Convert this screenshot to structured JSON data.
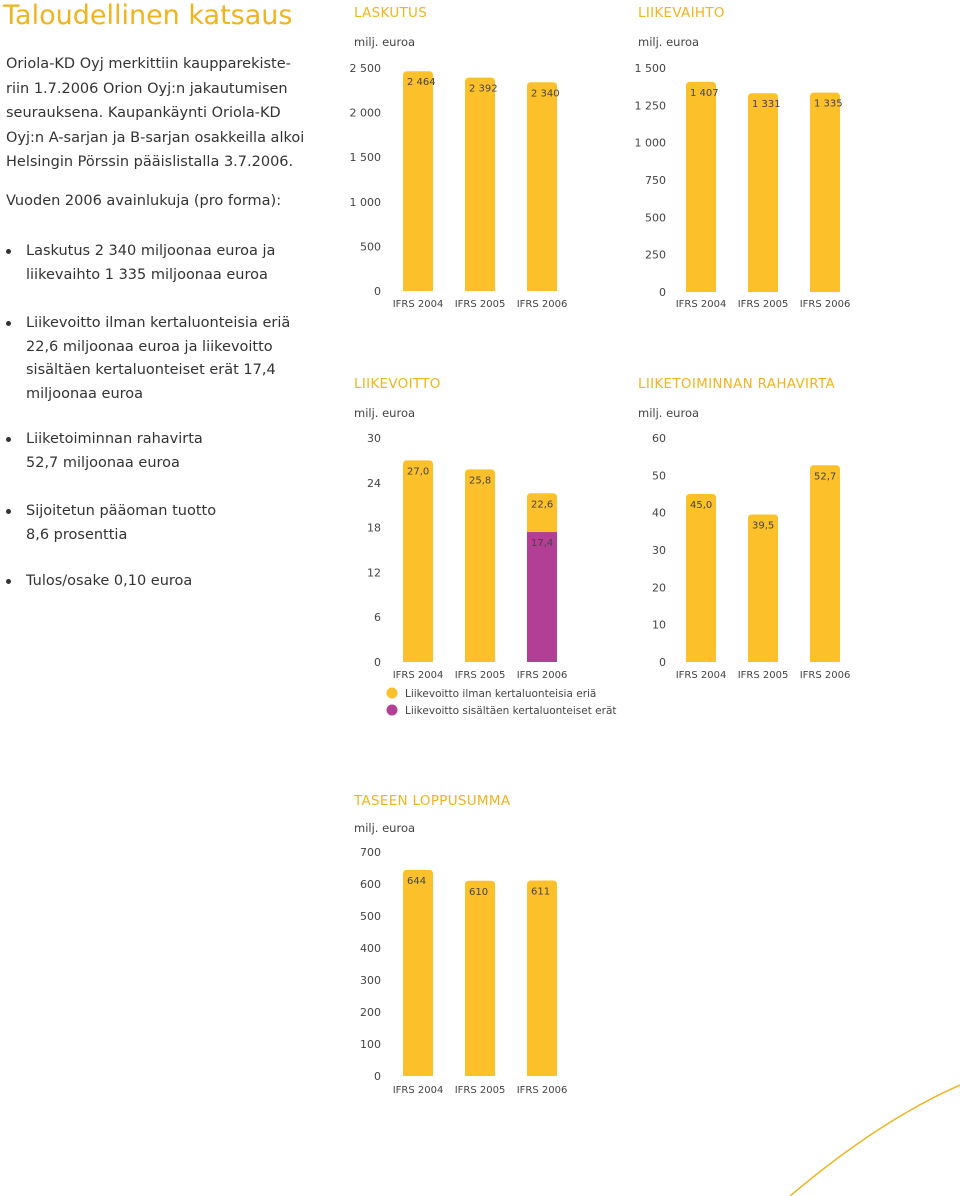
{
  "page": {
    "title": "Taloudellinen katsaus",
    "intro_lines": [
      "Oriola-KD Oyj merkittiin kaupparekiste-",
      "riin 1.7.2006 Orion Oyj:n jakautumisen",
      "seurauksena. Kaupankäynti Oriola-KD",
      "Oyj:n A-sarjan ja B-sarjan osakkeilla alkoi",
      "Helsingin Pörssin pääislistalla 3.7.2006."
    ],
    "key_figures_heading": "Vuoden 2006 avainlukuja (pro forma):",
    "bullets": [
      [
        "Laskutus 2 340 miljoonaa euroa ja",
        "liikevaihto 1 335 miljoonaa euroa"
      ],
      [
        "Liikevoitto ilman kertaluonteisia eriä",
        "22,6 miljoonaa euroa ja liikevoitto",
        "sisältäen kertaluonteiset erät 17,4",
        "miljoonaa euroa"
      ],
      [
        "Liiketoiminnan rahavirta",
        "52,7 miljoonaa euroa"
      ],
      [
        "Sijoitetun pääoman tuotto",
        "8,6 prosenttia"
      ],
      [
        "Tulos/osake 0,10 euroa"
      ]
    ]
  },
  "colors": {
    "accent": "#f0b41e",
    "bar": "#fcc02a",
    "purple": "#b23e96",
    "text": "#444444"
  },
  "chart_data": [
    {
      "id": "laskutus",
      "type": "bar",
      "title": "LASKUTUS",
      "unit": "milj. euroa",
      "categories": [
        "IFRS 2004",
        "IFRS 2005",
        "IFRS 2006"
      ],
      "values": [
        2464,
        2392,
        2340
      ],
      "labels": [
        "2 464",
        "2 392",
        "2 340"
      ],
      "ylim": [
        0,
        2500
      ],
      "ticks": [
        0,
        500,
        1000,
        1500,
        2000,
        2500
      ],
      "tick_labels": [
        "0",
        "500",
        "1 000",
        "1 500",
        "2 000",
        "2 500"
      ]
    },
    {
      "id": "liikevaihto",
      "type": "bar",
      "title": "LIIKEVAIHTO",
      "unit": "milj. euroa",
      "categories": [
        "IFRS 2004",
        "IFRS 2005",
        "IFRS 2006"
      ],
      "values": [
        1407,
        1331,
        1335
      ],
      "labels": [
        "1 407",
        "1 331",
        "1 335"
      ],
      "ylim": [
        0,
        1500
      ],
      "ticks": [
        0,
        250,
        500,
        750,
        1000,
        1250,
        1500
      ],
      "tick_labels": [
        "0",
        "250",
        "500",
        "750",
        "1 000",
        "1 250",
        "1 500"
      ]
    },
    {
      "id": "liikevoitto",
      "type": "bar",
      "title": "LIIKEVOITTO",
      "unit": "milj. euroa",
      "categories": [
        "IFRS 2004",
        "IFRS 2005",
        "IFRS 2006"
      ],
      "values": [
        27.0,
        25.8,
        22.6
      ],
      "labels": [
        "27,0",
        "25,8",
        "22,6"
      ],
      "overlay_values": [
        null,
        null,
        17.4
      ],
      "overlay_labels": [
        "",
        "",
        "17,4"
      ],
      "ylim": [
        0,
        30
      ],
      "ticks": [
        0,
        6,
        12,
        18,
        24,
        30
      ],
      "tick_labels": [
        "0",
        "6",
        "12",
        "18",
        "24",
        "30"
      ],
      "legend": [
        "Liikevoitto ilman kertaluonteisia eriä",
        "Liikevoitto sisältäen kertaluonteiset erät"
      ]
    },
    {
      "id": "rahavirta",
      "type": "bar",
      "title": "LIIKETOIMINNAN RAHAVIRTA",
      "unit": "milj. euroa",
      "categories": [
        "IFRS 2004",
        "IFRS 2005",
        "IFRS 2006"
      ],
      "values": [
        45.0,
        39.5,
        52.7
      ],
      "labels": [
        "45,0",
        "39,5",
        "52,7"
      ],
      "ylim": [
        0,
        60
      ],
      "ticks": [
        0,
        10,
        20,
        30,
        40,
        50,
        60
      ],
      "tick_labels": [
        "0",
        "10",
        "20",
        "30",
        "40",
        "50",
        "60"
      ]
    },
    {
      "id": "taseen",
      "type": "bar",
      "title": "TASEEN LOPPUSUMMA",
      "unit": "milj. euroa",
      "categories": [
        "IFRS 2004",
        "IFRS 2005",
        "IFRS 2006"
      ],
      "values": [
        644,
        610,
        611
      ],
      "labels": [
        "644",
        "610",
        "611"
      ],
      "ylim": [
        0,
        700
      ],
      "ticks": [
        0,
        100,
        200,
        300,
        400,
        500,
        600,
        700
      ],
      "tick_labels": [
        "0",
        "100",
        "200",
        "300",
        "400",
        "500",
        "600",
        "700"
      ]
    }
  ]
}
